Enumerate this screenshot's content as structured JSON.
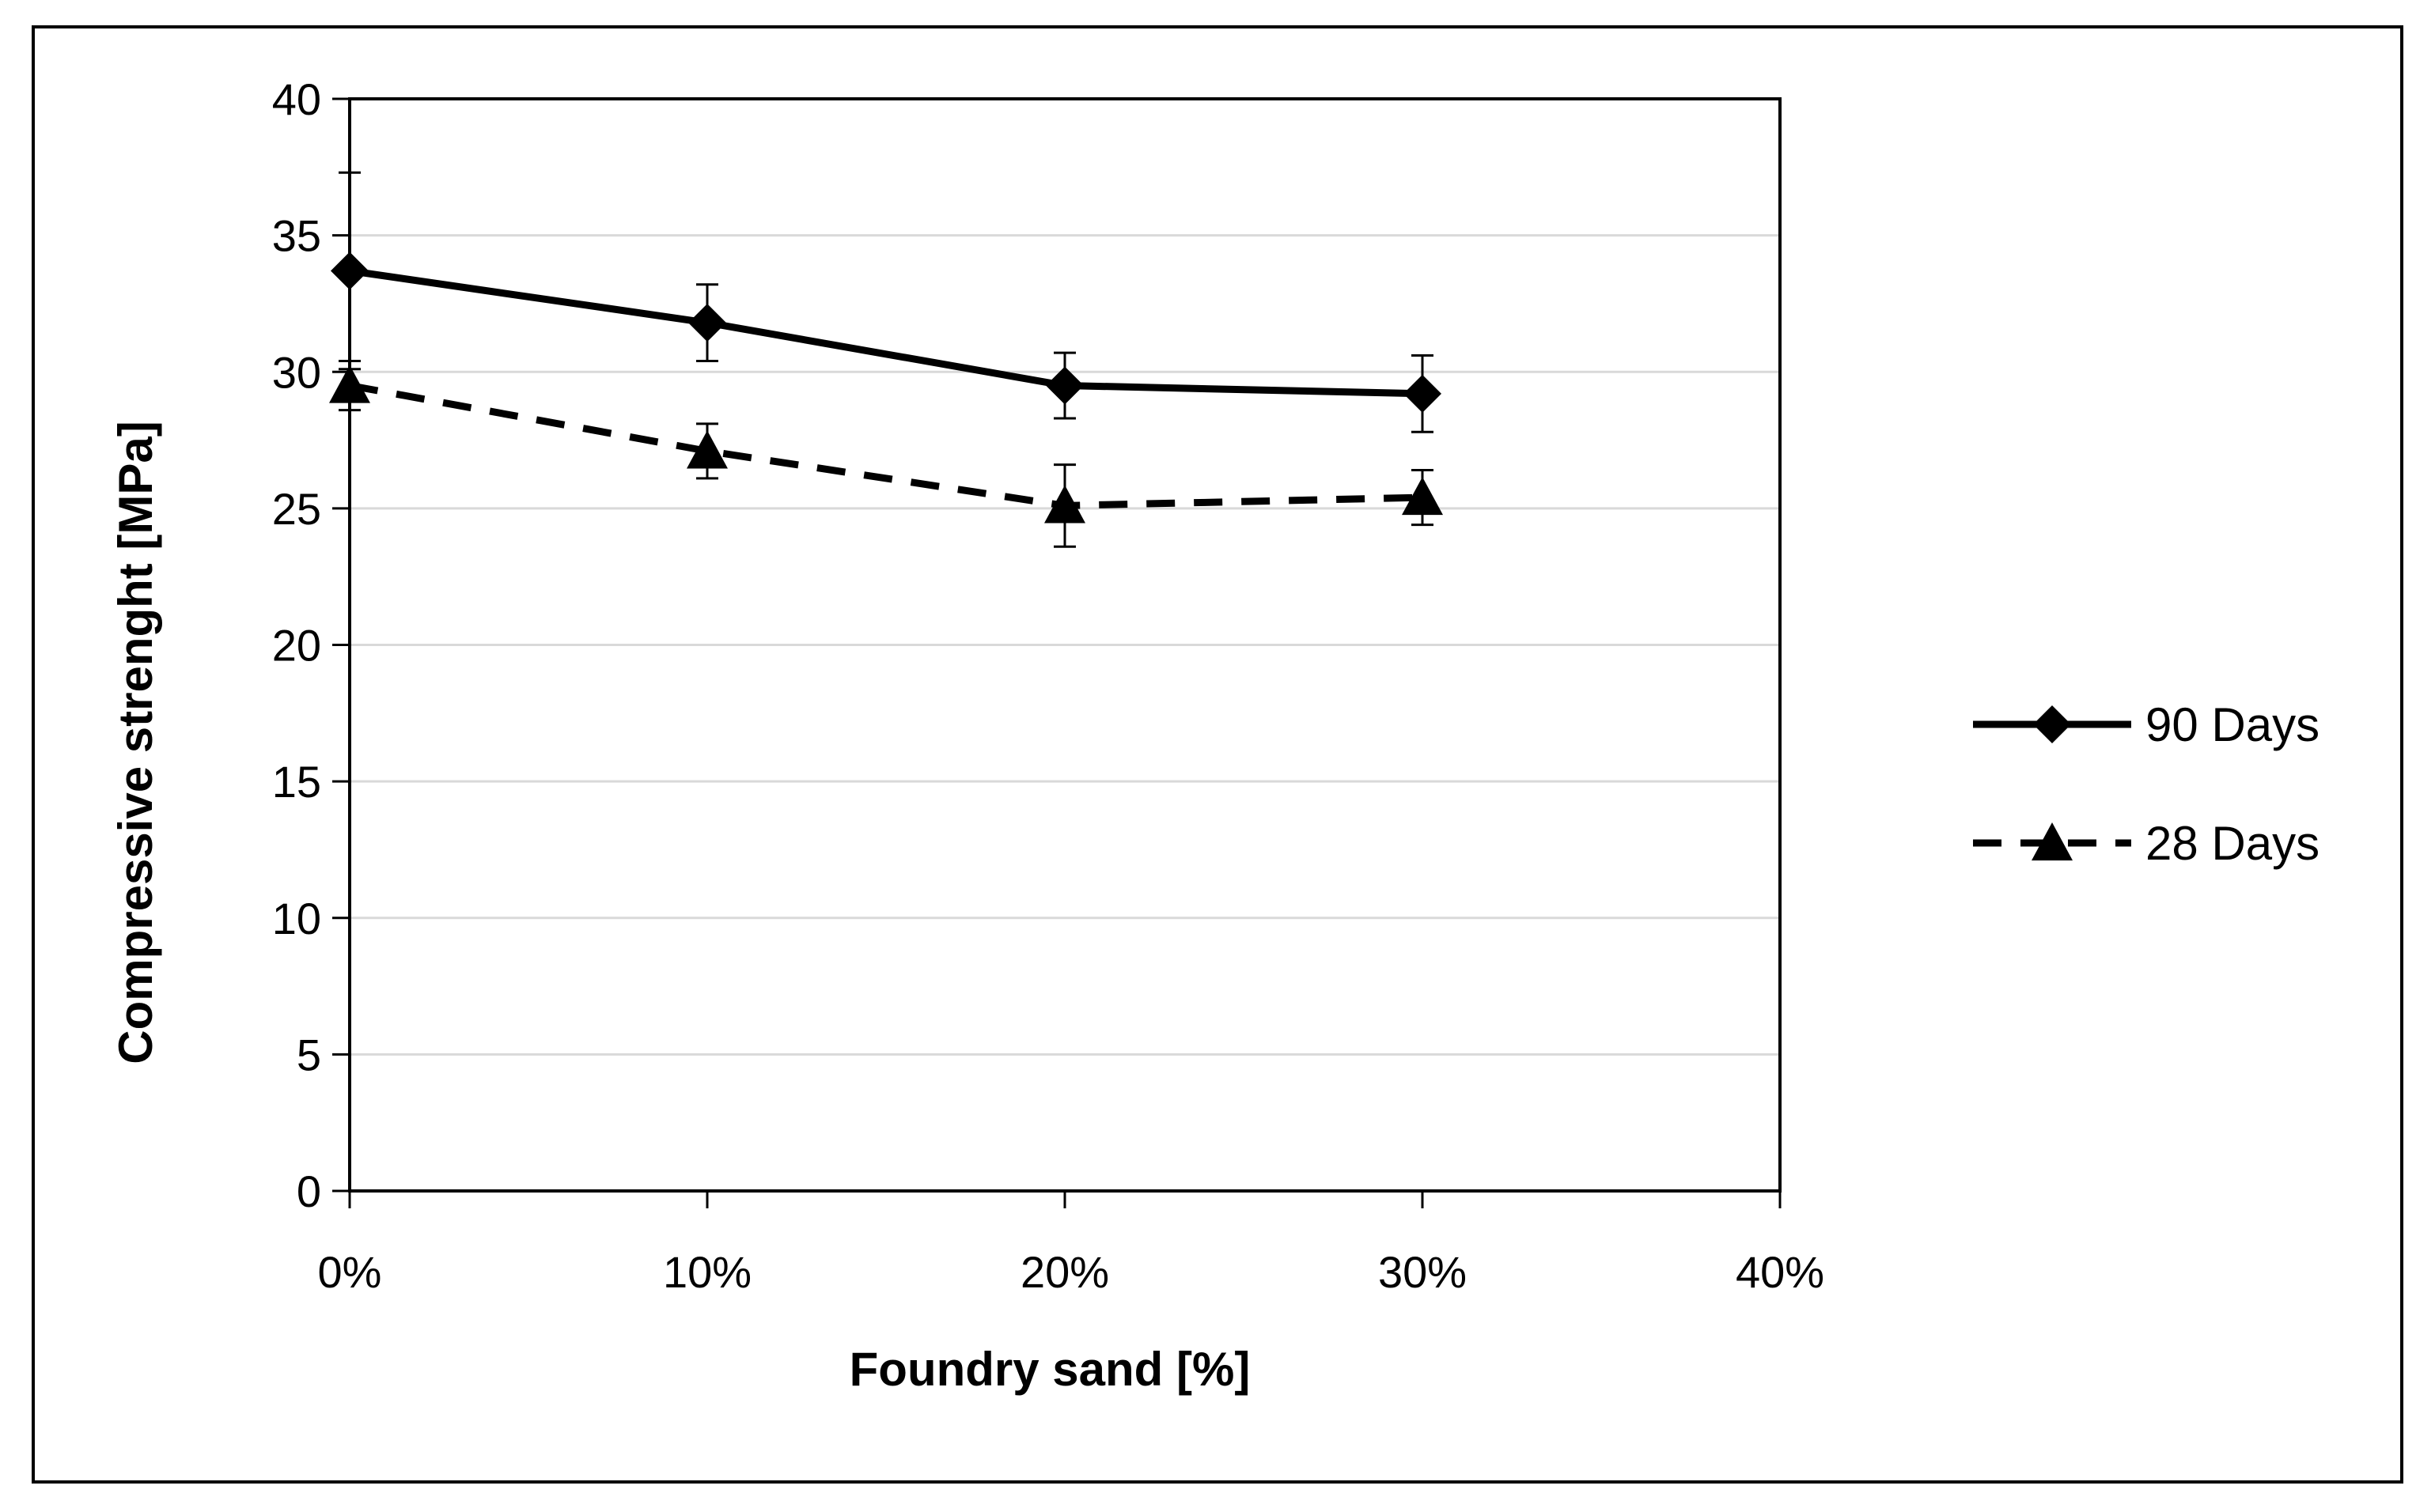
{
  "chart_data": {
    "type": "line",
    "title": "",
    "xlabel": "Foundry sand [%]",
    "ylabel": "Compressive strenght [MPa]",
    "x_ticks": [
      "0%",
      "10%",
      "20%",
      "30%",
      "40%"
    ],
    "y_ticks": [
      "0",
      "5",
      "10",
      "15",
      "20",
      "25",
      "30",
      "35",
      "40"
    ],
    "xlim": [
      0,
      40
    ],
    "ylim": [
      0,
      40
    ],
    "grid": "horizontal",
    "legend_position": "right",
    "x": [
      0,
      10,
      20,
      30
    ],
    "series": [
      {
        "name": "90 Days",
        "values": [
          33.7,
          31.8,
          29.5,
          29.2
        ],
        "errors": [
          3.6,
          1.4,
          1.2,
          1.4
        ],
        "line_style": "solid",
        "marker": "diamond",
        "color": "#000000"
      },
      {
        "name": "28 Days",
        "values": [
          29.5,
          27.1,
          25.1,
          25.4
        ],
        "errors": [
          0.9,
          1.0,
          1.5,
          1.0
        ],
        "line_style": "dashed",
        "marker": "triangle",
        "color": "#000000"
      }
    ],
    "grid_color": "#d9d9d9"
  }
}
